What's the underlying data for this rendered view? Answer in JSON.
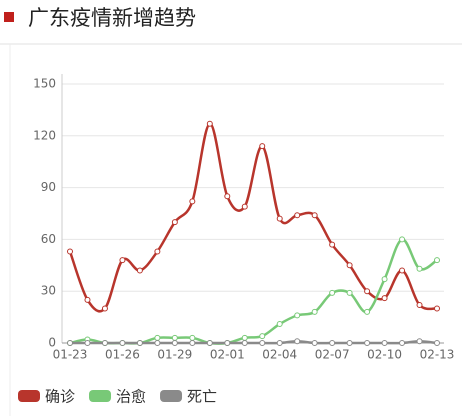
{
  "chart_data": {
    "type": "line",
    "title": "广东疫情新增趋势",
    "categories": [
      "01-23",
      null,
      null,
      "01-26",
      null,
      null,
      "01-29",
      null,
      null,
      "02-01",
      null,
      null,
      "02-04",
      null,
      null,
      "02-07",
      null,
      null,
      "02-10",
      null,
      null,
      "02-13"
    ],
    "series": [
      {
        "name": "确诊",
        "color": "#b8352c",
        "values": [
          53,
          25,
          20,
          48,
          42,
          53,
          70,
          82,
          127,
          85,
          79,
          114,
          72,
          74,
          74,
          57,
          45,
          30,
          26,
          42,
          22,
          20
        ]
      },
      {
        "name": "治愈",
        "color": "#78c977",
        "values": [
          0,
          2,
          0,
          0,
          0,
          3,
          3,
          3,
          0,
          0,
          3,
          4,
          11,
          16,
          18,
          29,
          29,
          18,
          37,
          60,
          43,
          48
        ]
      },
      {
        "name": "死亡",
        "color": "#8a8a8a",
        "values": [
          0,
          0,
          0,
          0,
          0,
          0,
          0,
          0,
          0,
          0,
          0,
          0,
          0,
          1,
          0,
          0,
          0,
          0,
          0,
          0,
          1,
          0
        ]
      }
    ],
    "ylim": [
      0,
      150
    ],
    "yticks": [
      0,
      30,
      60,
      90,
      120,
      150
    ],
    "grid": true,
    "legend": "bottom-left"
  }
}
